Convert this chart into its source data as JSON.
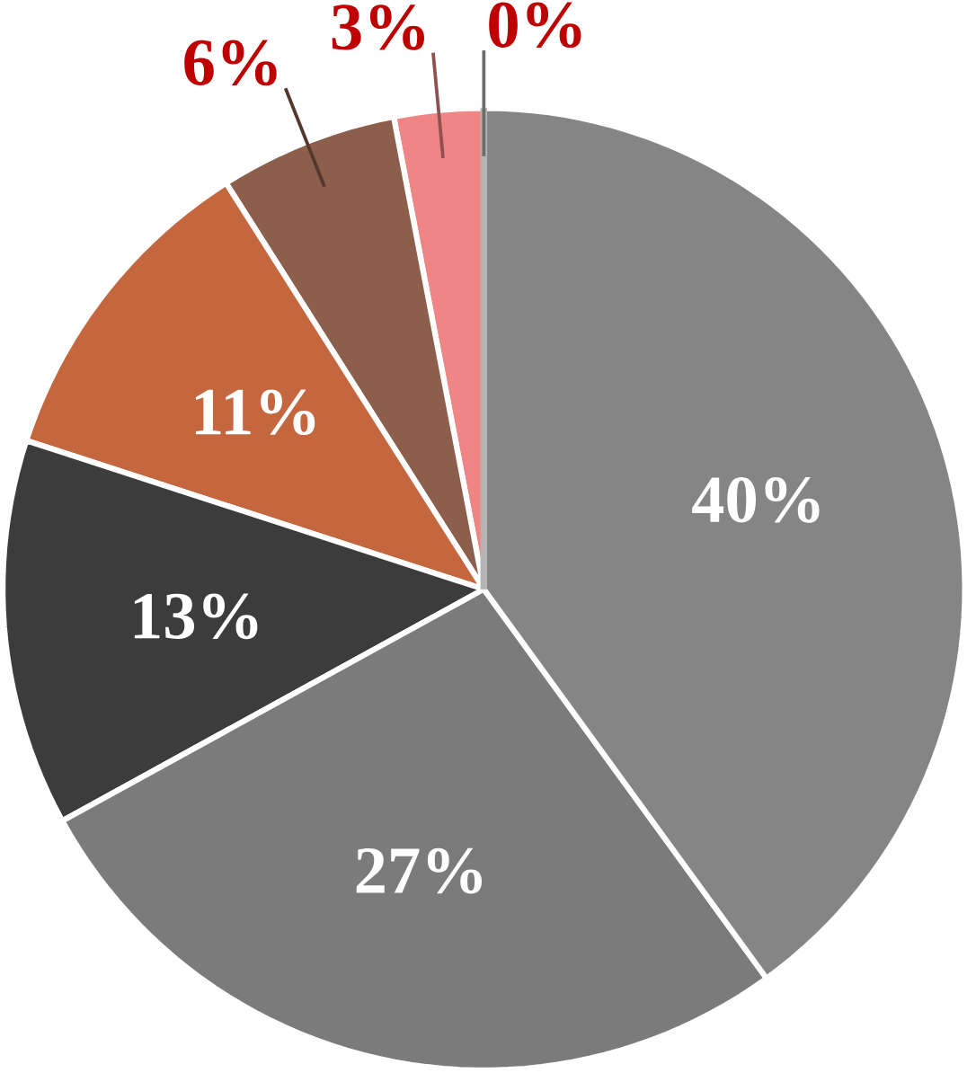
{
  "chart_data": {
    "type": "pie",
    "categories": [
      null,
      null,
      null,
      null,
      null,
      null,
      null
    ],
    "values": [
      40,
      27,
      13,
      11,
      6,
      3,
      0
    ],
    "colors": [
      "#858585",
      "#7b7b7b",
      "#3c3c3c",
      "#c4673f",
      "#8c5e4c",
      "#f08585",
      "#b4b4b4"
    ],
    "value_labels": [
      "40%",
      "27%",
      "13%",
      "11%",
      "6%",
      "3%",
      "0%"
    ]
  }
}
